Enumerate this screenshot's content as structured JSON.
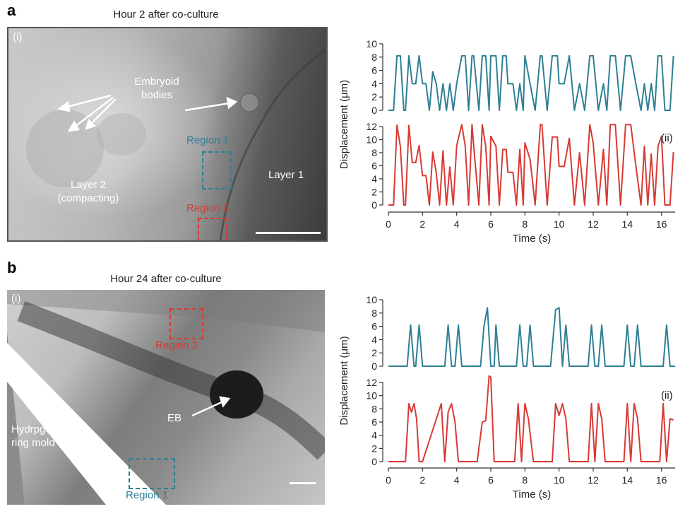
{
  "colors": {
    "region1": "#2e7f95",
    "region2": "#d83a34"
  },
  "panel_a": {
    "letter": "a",
    "caption": "Hour 2 after co-culture",
    "image": {
      "roman": "(i)",
      "labels": {
        "embryoid": "Embryoid\nbodies",
        "layer1": "Layer 1",
        "layer2": "Layer 2\n(compacting)",
        "region1": "Region 1",
        "region2": "Region 2"
      }
    },
    "plot": {
      "roman": "(ii)",
      "ylabel": "Displacement (μm)",
      "xlabel": "Time (s)"
    }
  },
  "panel_b": {
    "letter": "b",
    "caption": "Hour 24 after co-culture",
    "image": {
      "roman": "(i)",
      "labels": {
        "eb": "EB",
        "mold": "Hydrpgel\nring mold",
        "region1": "Region 1",
        "region2": "Region 2"
      }
    },
    "plot": {
      "roman": "(ii)",
      "ylabel": "Displacement (μm)",
      "xlabel": "Time (s)"
    }
  },
  "chart_data": [
    {
      "type": "line",
      "panel": "a",
      "x_ticks": [
        0,
        2,
        4,
        6,
        8,
        10,
        12,
        14,
        16
      ],
      "xlim": [
        0,
        16.8
      ],
      "xlabel": "Time (s)",
      "ylabel": "Displacement (μm)",
      "grid": false,
      "series": [
        {
          "name": "Region 1",
          "color": "#2e7f95",
          "ylim": [
            0,
            10
          ],
          "y_ticks": [
            0,
            2,
            4,
            6,
            8,
            10
          ],
          "x": [
            0,
            0.3,
            0.5,
            0.7,
            0.9,
            1.0,
            1.2,
            1.4,
            1.6,
            1.8,
            2.0,
            2.2,
            2.4,
            2.6,
            2.8,
            3.0,
            3.2,
            3.4,
            3.6,
            3.8,
            4.0,
            4.3,
            4.5,
            4.7,
            4.9,
            5.0,
            5.3,
            5.5,
            5.7,
            5.9,
            6.0,
            6.3,
            6.5,
            6.7,
            6.9,
            7.0,
            7.3,
            7.5,
            7.7,
            7.9,
            8.0,
            8.3,
            8.6,
            8.9,
            9.0,
            9.3,
            9.6,
            9.9,
            10.0,
            10.3,
            10.6,
            10.9,
            11.2,
            11.5,
            11.8,
            12.0,
            12.3,
            12.6,
            12.8,
            13.0,
            13.3,
            13.6,
            13.9,
            14.2,
            14.5,
            14.8,
            15.0,
            15.2,
            15.4,
            15.6,
            15.8,
            16.0,
            16.2,
            16.5,
            16.7
          ],
          "y": [
            0,
            0,
            8.2,
            8.2,
            0,
            0,
            8.2,
            4,
            4,
            8.2,
            4,
            4,
            0,
            5.8,
            4,
            0,
            4,
            0,
            4,
            0,
            4,
            8.2,
            8.2,
            0,
            8.2,
            8.2,
            0,
            8.2,
            8.2,
            0,
            8.2,
            8.2,
            0,
            8.2,
            8.2,
            4,
            4,
            0,
            4,
            0,
            8.2,
            4,
            0,
            8.2,
            8.2,
            0,
            8.2,
            8.2,
            4,
            4,
            8.2,
            0,
            4,
            0,
            8.2,
            8.2,
            0,
            4,
            0,
            8.2,
            8.2,
            0,
            8.2,
            8.2,
            4,
            0,
            4,
            0,
            4,
            0,
            8.2,
            8.2,
            0,
            0,
            8.2
          ]
        },
        {
          "name": "Region 2",
          "color": "#d83a34",
          "ylim": [
            0,
            12
          ],
          "y_ticks": [
            0,
            2,
            4,
            6,
            8,
            10,
            12
          ],
          "x": [
            0,
            0.3,
            0.5,
            0.7,
            0.9,
            1.0,
            1.2,
            1.4,
            1.6,
            1.8,
            2.0,
            2.2,
            2.4,
            2.6,
            2.8,
            3.0,
            3.2,
            3.4,
            3.6,
            3.8,
            4.0,
            4.3,
            4.5,
            4.7,
            4.9,
            5.0,
            5.3,
            5.5,
            5.7,
            5.9,
            6.0,
            6.3,
            6.5,
            6.7,
            6.9,
            7.0,
            7.3,
            7.5,
            7.7,
            7.9,
            8.0,
            8.3,
            8.6,
            8.9,
            9.0,
            9.3,
            9.6,
            9.9,
            10.0,
            10.3,
            10.6,
            10.9,
            11.2,
            11.5,
            11.8,
            12.0,
            12.3,
            12.6,
            12.8,
            13.0,
            13.3,
            13.6,
            13.9,
            14.2,
            14.5,
            14.8,
            15.0,
            15.2,
            15.4,
            15.6,
            15.8,
            16.0,
            16.2,
            16.5,
            16.7
          ],
          "y": [
            0,
            0,
            12.2,
            9,
            0,
            0,
            12.2,
            6.5,
            6.5,
            9.1,
            4.5,
            4.5,
            0,
            8.1,
            5,
            0,
            8.3,
            0,
            5.8,
            0,
            9.1,
            12.3,
            9,
            0,
            12.3,
            9,
            0,
            12.3,
            9,
            0,
            10.5,
            9,
            0,
            8.5,
            8.5,
            5,
            5,
            0,
            8.5,
            0,
            9.5,
            7,
            0,
            12.3,
            12.3,
            0,
            10.4,
            10.4,
            5.9,
            5.9,
            10.2,
            0,
            8,
            0,
            12.3,
            9.5,
            0,
            8.5,
            0,
            12.3,
            12.3,
            0,
            12.3,
            12.3,
            6,
            0,
            9,
            0,
            7.8,
            0,
            9,
            10.5,
            0,
            0,
            8.1
          ]
        }
      ]
    },
    {
      "type": "line",
      "panel": "b",
      "x_ticks": [
        0,
        2,
        4,
        6,
        8,
        10,
        12,
        14,
        16
      ],
      "xlim": [
        0,
        16.8
      ],
      "xlabel": "Time (s)",
      "ylabel": "Displacement (μm)",
      "grid": false,
      "series": [
        {
          "name": "Region 1",
          "color": "#2e7f95",
          "ylim": [
            0,
            10
          ],
          "y_ticks": [
            0,
            2,
            4,
            6,
            8,
            10
          ],
          "x": [
            0,
            1.1,
            1.3,
            1.5,
            1.6,
            1.8,
            2.0,
            3.3,
            3.5,
            3.7,
            3.9,
            4.1,
            4.3,
            5.4,
            5.6,
            5.8,
            6.0,
            6.2,
            6.3,
            6.5,
            7.5,
            7.7,
            7.9,
            8.1,
            8.3,
            8.5,
            9.5,
            9.8,
            10.0,
            10.2,
            10.4,
            10.6,
            11.7,
            11.9,
            12.1,
            12.3,
            12.5,
            12.7,
            13.8,
            14.0,
            14.2,
            14.4,
            14.6,
            14.8,
            16.1,
            16.3,
            16.5,
            16.8
          ],
          "y": [
            0,
            0,
            6.2,
            0,
            0,
            6.2,
            0,
            0,
            6.2,
            0,
            0,
            6.2,
            0,
            0,
            6,
            8.8,
            0,
            0,
            6.2,
            0,
            0,
            6.2,
            0,
            0,
            6.2,
            0,
            0,
            8.5,
            8.8,
            0,
            6.2,
            0,
            0,
            6.2,
            0,
            0,
            6.2,
            0,
            0,
            6.2,
            0,
            0,
            6.2,
            0,
            0,
            6.2,
            0,
            0
          ]
        },
        {
          "name": "Region 2",
          "color": "#d83a34",
          "ylim": [
            0,
            12
          ],
          "y_ticks": [
            0,
            2,
            4,
            6,
            8,
            10,
            12
          ],
          "x": [
            0,
            1.0,
            1.2,
            1.35,
            1.5,
            1.65,
            1.8,
            2.0,
            3.1,
            3.3,
            3.5,
            3.7,
            3.9,
            4.1,
            5.2,
            5.5,
            5.7,
            5.9,
            6.0,
            6.2,
            7.4,
            7.6,
            7.8,
            8.0,
            8.2,
            8.5,
            9.6,
            9.8,
            10.0,
            10.2,
            10.4,
            10.6,
            11.7,
            11.9,
            12.1,
            12.3,
            12.5,
            12.7,
            13.8,
            14.0,
            14.2,
            14.4,
            14.6,
            14.8,
            15.9,
            16.1,
            16.3,
            16.5,
            16.7
          ],
          "y": [
            0,
            0,
            8.8,
            7.5,
            8.8,
            6.5,
            0,
            0,
            8.8,
            0,
            7.5,
            8.8,
            6,
            0,
            0,
            6,
            6.2,
            13,
            12.8,
            0,
            0,
            8.8,
            0,
            8.8,
            6.5,
            0,
            0,
            8.8,
            7,
            8.8,
            6.5,
            0,
            0,
            8.8,
            0,
            8.8,
            6.5,
            0,
            0,
            8.8,
            0,
            8.8,
            6.5,
            0,
            0,
            8.8,
            0,
            6.5,
            6.3
          ]
        }
      ]
    }
  ]
}
